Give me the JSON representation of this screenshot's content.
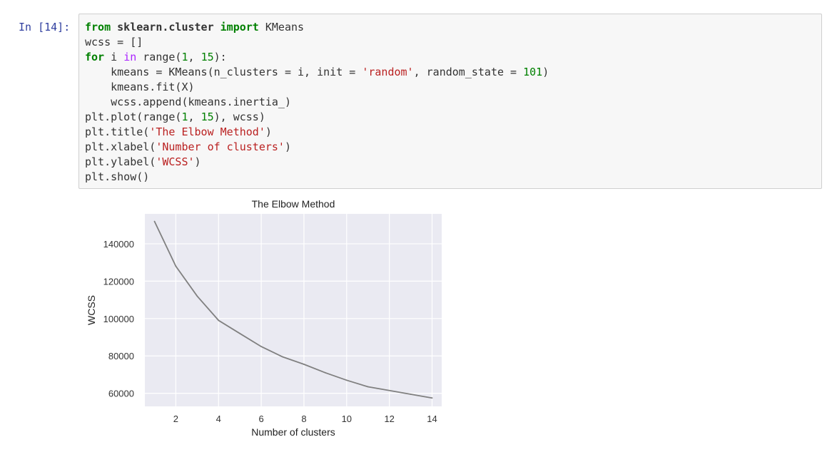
{
  "cell": {
    "prompt": "In [14]:",
    "code_lines": [
      "from sklearn.cluster import KMeans",
      "wcss = []",
      "for i in range(1, 15):",
      "    kmeans = KMeans(n_clusters = i, init = 'random', random_state = 101)",
      "    kmeans.fit(X)",
      "    wcss.append(kmeans.inertia_)",
      "plt.plot(range(1, 15), wcss)",
      "plt.title('The Elbow Method')",
      "plt.xlabel('Number of clusters')",
      "plt.ylabel('WCSS')",
      "plt.show()"
    ]
  },
  "chart_data": {
    "type": "line",
    "title": "The Elbow Method",
    "xlabel": "Number of clusters",
    "ylabel": "WCSS",
    "x": [
      1,
      2,
      3,
      4,
      5,
      6,
      7,
      8,
      9,
      10,
      11,
      12,
      13,
      14
    ],
    "series": [
      {
        "values": [
          152000,
          128000,
          112000,
          99000,
          92000,
          85000,
          79500,
          75500,
          71000,
          67000,
          63500,
          61500,
          59500,
          57500
        ]
      }
    ],
    "xlim": [
      0.55,
      14.45
    ],
    "ylim": [
      53000,
      156000
    ],
    "xticks": [
      2,
      4,
      6,
      8,
      10,
      12,
      14
    ],
    "yticks": [
      60000,
      80000,
      100000,
      120000,
      140000
    ],
    "grid": true,
    "line_color": "#808080",
    "plot_bg": "#eaeaf2"
  }
}
